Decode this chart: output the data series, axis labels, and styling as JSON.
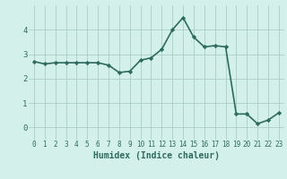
{
  "x": [
    0,
    1,
    2,
    3,
    4,
    5,
    6,
    7,
    8,
    9,
    10,
    11,
    12,
    13,
    14,
    15,
    16,
    17,
    18,
    19,
    20,
    21,
    22,
    23
  ],
  "y": [
    2.7,
    2.6,
    2.65,
    2.65,
    2.65,
    2.65,
    2.65,
    2.55,
    2.25,
    2.3,
    2.75,
    2.85,
    3.2,
    4.0,
    4.5,
    3.7,
    3.3,
    3.35,
    3.3,
    0.55,
    0.55,
    0.15,
    0.3,
    0.6
  ],
  "line_color": "#2e6b5e",
  "marker": "D",
  "marker_size": 2.2,
  "line_width": 1.2,
  "xlabel": "Humidex (Indice chaleur)",
  "xlabel_fontsize": 7,
  "bg_color": "#d4f0eb",
  "grid_color": "#aacfc8",
  "tick_color": "#2e6b5e",
  "ylim": [
    -0.5,
    5.0
  ],
  "xlim": [
    -0.5,
    23.5
  ],
  "yticks": [
    0,
    1,
    2,
    3,
    4
  ],
  "xticks": [
    0,
    1,
    2,
    3,
    4,
    5,
    6,
    7,
    8,
    9,
    10,
    11,
    12,
    13,
    14,
    15,
    16,
    17,
    18,
    19,
    20,
    21,
    22,
    23
  ],
  "tick_fontsize": 5.5,
  "ytick_fontsize": 6.5
}
